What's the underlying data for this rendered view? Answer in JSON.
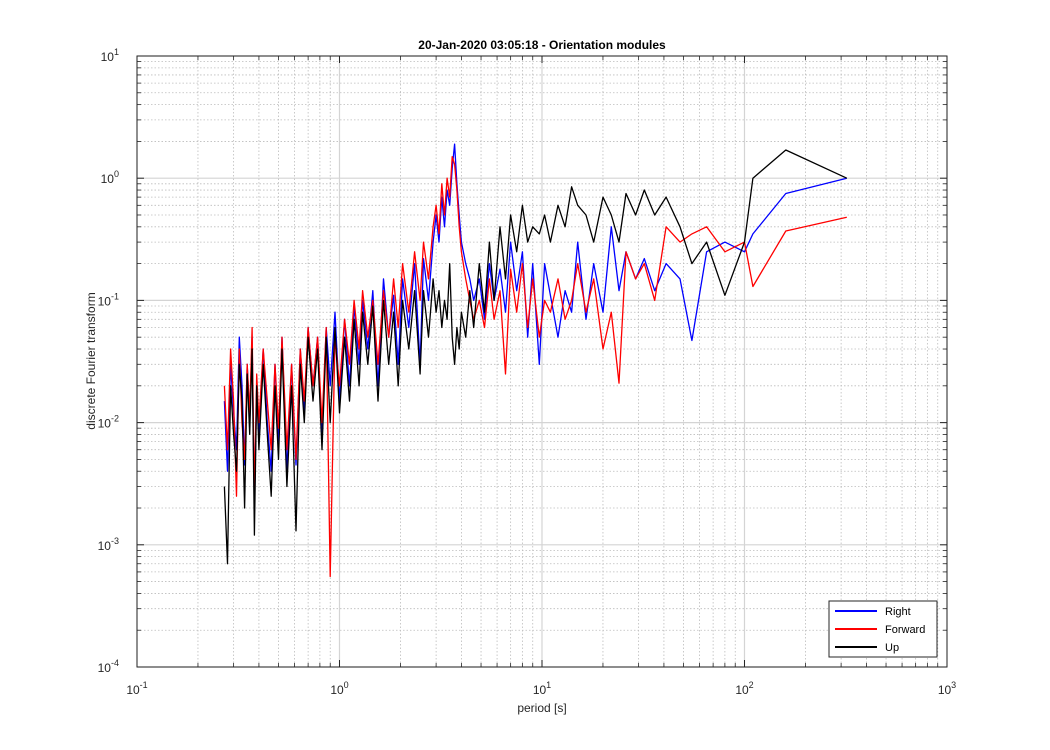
{
  "chart_data": {
    "type": "line",
    "title": "20-Jan-2020 03:05:18 - Orientation modules",
    "xlabel": "period [s]",
    "ylabel": "discrete Fourier transform",
    "xscale": "log",
    "yscale": "log",
    "xlim": [
      0.1,
      1000
    ],
    "ylim": [
      0.0001,
      10
    ],
    "grid": true,
    "minor_grid": true,
    "legend_location": "bottom-right",
    "x_ticks": [
      {
        "base": "10",
        "exp": "-1",
        "value": 0.1
      },
      {
        "base": "10",
        "exp": "0",
        "value": 1
      },
      {
        "base": "10",
        "exp": "1",
        "value": 10
      },
      {
        "base": "10",
        "exp": "2",
        "value": 100
      },
      {
        "base": "10",
        "exp": "3",
        "value": 1000
      }
    ],
    "y_ticks": [
      {
        "base": "10",
        "exp": "-4",
        "value": 0.0001
      },
      {
        "base": "10",
        "exp": "-3",
        "value": 0.001
      },
      {
        "base": "10",
        "exp": "-2",
        "value": 0.01
      },
      {
        "base": "10",
        "exp": "-1",
        "value": 0.1
      },
      {
        "base": "10",
        "exp": "0",
        "value": 1
      },
      {
        "base": "10",
        "exp": "1",
        "value": 10
      }
    ],
    "series": [
      {
        "name": "Right",
        "color": "#0000ff",
        "points": [
          [
            0.27,
            0.015
          ],
          [
            0.28,
            0.004
          ],
          [
            0.29,
            0.03
          ],
          [
            0.3,
            0.012
          ],
          [
            0.31,
            0.006
          ],
          [
            0.32,
            0.05
          ],
          [
            0.33,
            0.02
          ],
          [
            0.34,
            0.0045
          ],
          [
            0.35,
            0.03
          ],
          [
            0.36,
            0.01
          ],
          [
            0.37,
            0.05
          ],
          [
            0.38,
            0.0019
          ],
          [
            0.39,
            0.02
          ],
          [
            0.4,
            0.008
          ],
          [
            0.42,
            0.04
          ],
          [
            0.44,
            0.01
          ],
          [
            0.46,
            0.004
          ],
          [
            0.48,
            0.03
          ],
          [
            0.5,
            0.007
          ],
          [
            0.52,
            0.05
          ],
          [
            0.55,
            0.004
          ],
          [
            0.58,
            0.03
          ],
          [
            0.61,
            0.0045
          ],
          [
            0.64,
            0.04
          ],
          [
            0.67,
            0.012
          ],
          [
            0.7,
            0.06
          ],
          [
            0.74,
            0.02
          ],
          [
            0.78,
            0.05
          ],
          [
            0.82,
            0.008
          ],
          [
            0.86,
            0.06
          ],
          [
            0.9,
            0.02
          ],
          [
            0.95,
            0.08
          ],
          [
            1.0,
            0.015
          ],
          [
            1.06,
            0.07
          ],
          [
            1.12,
            0.02
          ],
          [
            1.18,
            0.09
          ],
          [
            1.25,
            0.03
          ],
          [
            1.3,
            0.1
          ],
          [
            1.38,
            0.04
          ],
          [
            1.46,
            0.12
          ],
          [
            1.55,
            0.02
          ],
          [
            1.65,
            0.15
          ],
          [
            1.75,
            0.05
          ],
          [
            1.85,
            0.11
          ],
          [
            1.95,
            0.03
          ],
          [
            2.05,
            0.15
          ],
          [
            2.2,
            0.06
          ],
          [
            2.35,
            0.2
          ],
          [
            2.5,
            0.03
          ],
          [
            2.6,
            0.22
          ],
          [
            2.75,
            0.1
          ],
          [
            2.9,
            0.3
          ],
          [
            3.0,
            0.5
          ],
          [
            3.1,
            0.3
          ],
          [
            3.2,
            0.7
          ],
          [
            3.3,
            0.4
          ],
          [
            3.4,
            0.8
          ],
          [
            3.5,
            0.6
          ],
          [
            3.6,
            1.2
          ],
          [
            3.7,
            1.9
          ],
          [
            3.8,
            0.9
          ],
          [
            3.9,
            0.5
          ],
          [
            4.0,
            0.3
          ],
          [
            4.2,
            0.2
          ],
          [
            4.4,
            0.15
          ],
          [
            4.6,
            0.1
          ],
          [
            4.9,
            0.15
          ],
          [
            5.2,
            0.07
          ],
          [
            5.5,
            0.2
          ],
          [
            5.8,
            0.1
          ],
          [
            6.2,
            0.18
          ],
          [
            6.6,
            0.08
          ],
          [
            7.0,
            0.3
          ],
          [
            7.5,
            0.12
          ],
          [
            8.0,
            0.25
          ],
          [
            8.5,
            0.05
          ],
          [
            9.0,
            0.2
          ],
          [
            9.7,
            0.03
          ],
          [
            10.3,
            0.2
          ],
          [
            11,
            0.11
          ],
          [
            12,
            0.05
          ],
          [
            13,
            0.12
          ],
          [
            14,
            0.08
          ],
          [
            15,
            0.3
          ],
          [
            16.5,
            0.07
          ],
          [
            18,
            0.2
          ],
          [
            20,
            0.08
          ],
          [
            22,
            0.4
          ],
          [
            24,
            0.12
          ],
          [
            26,
            0.25
          ],
          [
            29,
            0.15
          ],
          [
            32,
            0.22
          ],
          [
            36,
            0.12
          ],
          [
            41,
            0.2
          ],
          [
            48,
            0.15
          ],
          [
            55,
            0.047
          ],
          [
            65,
            0.25
          ],
          [
            80,
            0.3
          ],
          [
            100,
            0.25
          ],
          [
            110,
            0.35
          ],
          [
            160,
            0.75
          ],
          [
            320,
            1.0
          ]
        ]
      },
      {
        "name": "Forward",
        "color": "#ff0000",
        "points": [
          [
            0.27,
            0.02
          ],
          [
            0.28,
            0.006
          ],
          [
            0.29,
            0.04
          ],
          [
            0.3,
            0.015
          ],
          [
            0.31,
            0.0025
          ],
          [
            0.32,
            0.04
          ],
          [
            0.33,
            0.01
          ],
          [
            0.34,
            0.005
          ],
          [
            0.35,
            0.03
          ],
          [
            0.36,
            0.012
          ],
          [
            0.37,
            0.06
          ],
          [
            0.38,
            0.0025
          ],
          [
            0.39,
            0.025
          ],
          [
            0.4,
            0.01
          ],
          [
            0.42,
            0.04
          ],
          [
            0.44,
            0.015
          ],
          [
            0.46,
            0.006
          ],
          [
            0.48,
            0.03
          ],
          [
            0.5,
            0.009
          ],
          [
            0.52,
            0.05
          ],
          [
            0.55,
            0.006
          ],
          [
            0.58,
            0.03
          ],
          [
            0.61,
            0.005
          ],
          [
            0.64,
            0.04
          ],
          [
            0.67,
            0.015
          ],
          [
            0.7,
            0.06
          ],
          [
            0.74,
            0.02
          ],
          [
            0.78,
            0.05
          ],
          [
            0.82,
            0.01
          ],
          [
            0.86,
            0.06
          ],
          [
            0.9,
            0.00055
          ],
          [
            0.95,
            0.05
          ],
          [
            1.0,
            0.02
          ],
          [
            1.06,
            0.07
          ],
          [
            1.12,
            0.03
          ],
          [
            1.18,
            0.1
          ],
          [
            1.25,
            0.04
          ],
          [
            1.3,
            0.12
          ],
          [
            1.38,
            0.05
          ],
          [
            1.46,
            0.1
          ],
          [
            1.55,
            0.03
          ],
          [
            1.65,
            0.12
          ],
          [
            1.75,
            0.05
          ],
          [
            1.85,
            0.15
          ],
          [
            1.95,
            0.06
          ],
          [
            2.05,
            0.2
          ],
          [
            2.2,
            0.08
          ],
          [
            2.35,
            0.25
          ],
          [
            2.5,
            0.1
          ],
          [
            2.6,
            0.3
          ],
          [
            2.75,
            0.15
          ],
          [
            2.9,
            0.4
          ],
          [
            3.0,
            0.6
          ],
          [
            3.1,
            0.35
          ],
          [
            3.2,
            0.9
          ],
          [
            3.3,
            0.5
          ],
          [
            3.4,
            1.0
          ],
          [
            3.5,
            0.7
          ],
          [
            3.6,
            1.5
          ],
          [
            3.7,
            1.3
          ],
          [
            3.8,
            0.8
          ],
          [
            3.9,
            0.4
          ],
          [
            4.0,
            0.25
          ],
          [
            4.2,
            0.15
          ],
          [
            4.4,
            0.1
          ],
          [
            4.6,
            0.07
          ],
          [
            4.9,
            0.1
          ],
          [
            5.2,
            0.06
          ],
          [
            5.5,
            0.15
          ],
          [
            5.8,
            0.07
          ],
          [
            6.2,
            0.12
          ],
          [
            6.6,
            0.025
          ],
          [
            7.0,
            0.18
          ],
          [
            7.5,
            0.08
          ],
          [
            8.0,
            0.2
          ],
          [
            8.5,
            0.06
          ],
          [
            9.0,
            0.15
          ],
          [
            9.7,
            0.05
          ],
          [
            10.3,
            0.1
          ],
          [
            11,
            0.08
          ],
          [
            12,
            0.15
          ],
          [
            13,
            0.07
          ],
          [
            14,
            0.1
          ],
          [
            15,
            0.2
          ],
          [
            16.5,
            0.08
          ],
          [
            18,
            0.15
          ],
          [
            20,
            0.04
          ],
          [
            22,
            0.08
          ],
          [
            24,
            0.021
          ],
          [
            26,
            0.25
          ],
          [
            29,
            0.15
          ],
          [
            32,
            0.2
          ],
          [
            36,
            0.1
          ],
          [
            41,
            0.4
          ],
          [
            48,
            0.3
          ],
          [
            55,
            0.35
          ],
          [
            65,
            0.4
          ],
          [
            80,
            0.25
          ],
          [
            100,
            0.3
          ],
          [
            110,
            0.13
          ],
          [
            160,
            0.37
          ],
          [
            320,
            0.48
          ]
        ]
      },
      {
        "name": "Up",
        "color": "#000000",
        "points": [
          [
            0.27,
            0.003
          ],
          [
            0.28,
            0.0007
          ],
          [
            0.29,
            0.02
          ],
          [
            0.3,
            0.008
          ],
          [
            0.31,
            0.004
          ],
          [
            0.32,
            0.03
          ],
          [
            0.33,
            0.015
          ],
          [
            0.34,
            0.002
          ],
          [
            0.35,
            0.025
          ],
          [
            0.36,
            0.008
          ],
          [
            0.37,
            0.04
          ],
          [
            0.38,
            0.0012
          ],
          [
            0.39,
            0.02
          ],
          [
            0.4,
            0.006
          ],
          [
            0.42,
            0.03
          ],
          [
            0.44,
            0.008
          ],
          [
            0.46,
            0.0025
          ],
          [
            0.48,
            0.02
          ],
          [
            0.5,
            0.005
          ],
          [
            0.52,
            0.04
          ],
          [
            0.55,
            0.003
          ],
          [
            0.58,
            0.02
          ],
          [
            0.61,
            0.0013
          ],
          [
            0.64,
            0.03
          ],
          [
            0.67,
            0.01
          ],
          [
            0.7,
            0.05
          ],
          [
            0.74,
            0.015
          ],
          [
            0.78,
            0.04
          ],
          [
            0.82,
            0.006
          ],
          [
            0.86,
            0.05
          ],
          [
            0.9,
            0.01
          ],
          [
            0.95,
            0.06
          ],
          [
            1.0,
            0.012
          ],
          [
            1.06,
            0.05
          ],
          [
            1.12,
            0.015
          ],
          [
            1.18,
            0.07
          ],
          [
            1.25,
            0.02
          ],
          [
            1.3,
            0.08
          ],
          [
            1.38,
            0.03
          ],
          [
            1.46,
            0.09
          ],
          [
            1.55,
            0.015
          ],
          [
            1.65,
            0.1
          ],
          [
            1.75,
            0.03
          ],
          [
            1.85,
            0.08
          ],
          [
            1.95,
            0.02
          ],
          [
            2.05,
            0.1
          ],
          [
            2.2,
            0.04
          ],
          [
            2.35,
            0.12
          ],
          [
            2.5,
            0.025
          ],
          [
            2.6,
            0.12
          ],
          [
            2.75,
            0.05
          ],
          [
            2.9,
            0.15
          ],
          [
            3.0,
            0.08
          ],
          [
            3.1,
            0.12
          ],
          [
            3.2,
            0.06
          ],
          [
            3.3,
            0.1
          ],
          [
            3.4,
            0.07
          ],
          [
            3.5,
            0.2
          ],
          [
            3.6,
            0.05
          ],
          [
            3.7,
            0.03
          ],
          [
            3.8,
            0.06
          ],
          [
            3.9,
            0.04
          ],
          [
            4.0,
            0.08
          ],
          [
            4.2,
            0.05
          ],
          [
            4.4,
            0.12
          ],
          [
            4.6,
            0.06
          ],
          [
            4.9,
            0.2
          ],
          [
            5.2,
            0.08
          ],
          [
            5.5,
            0.3
          ],
          [
            5.8,
            0.1
          ],
          [
            6.2,
            0.4
          ],
          [
            6.6,
            0.15
          ],
          [
            7.0,
            0.5
          ],
          [
            7.5,
            0.25
          ],
          [
            8.0,
            0.6
          ],
          [
            8.5,
            0.3
          ],
          [
            9.0,
            0.4
          ],
          [
            9.7,
            0.35
          ],
          [
            10.3,
            0.5
          ],
          [
            11,
            0.3
          ],
          [
            12,
            0.6
          ],
          [
            13,
            0.4
          ],
          [
            14,
            0.85
          ],
          [
            15,
            0.6
          ],
          [
            16.5,
            0.5
          ],
          [
            18,
            0.3
          ],
          [
            20,
            0.7
          ],
          [
            22,
            0.5
          ],
          [
            24,
            0.3
          ],
          [
            26,
            0.75
          ],
          [
            29,
            0.5
          ],
          [
            32,
            0.8
          ],
          [
            36,
            0.5
          ],
          [
            41,
            0.7
          ],
          [
            48,
            0.4
          ],
          [
            55,
            0.2
          ],
          [
            65,
            0.3
          ],
          [
            80,
            0.11
          ],
          [
            100,
            0.3
          ],
          [
            110,
            1.0
          ],
          [
            160,
            1.7
          ],
          [
            320,
            1.0
          ]
        ]
      }
    ]
  }
}
